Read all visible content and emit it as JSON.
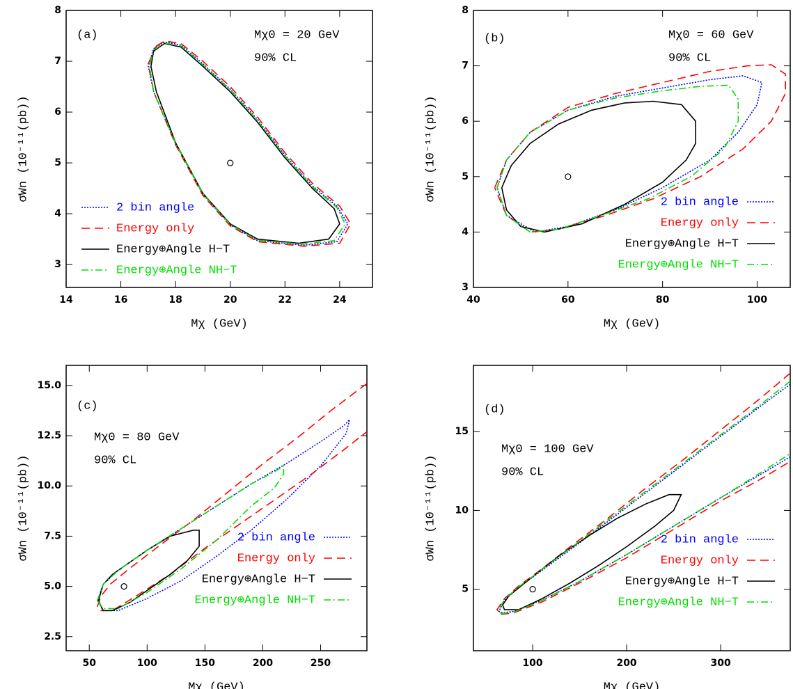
{
  "chart_data": [
    {
      "type": "line",
      "label": "(a)",
      "annotations": [
        "Mχ0 = 20 GeV",
        "90% CL"
      ],
      "x_label": "Mχ (GeV)",
      "y_label": "σWn (10⁻¹¹(pb))",
      "xlim": [
        14,
        25.2
      ],
      "ylim": [
        2.55,
        8
      ],
      "xticks": [
        14,
        16,
        18,
        20,
        22,
        24
      ],
      "yticks": [
        3,
        4,
        5,
        6,
        7,
        8
      ],
      "legend": "lower left",
      "center": {
        "x": 20,
        "y": 5
      },
      "series": [
        {
          "name": "2 bin angle",
          "color": "#0000ff",
          "dash": "2,2",
          "x": [
            17.2,
            17.6,
            18.2,
            19,
            20,
            21,
            22,
            23,
            23.9,
            24.3,
            23.9,
            22.7,
            21,
            20,
            19,
            18,
            17.2,
            17.0,
            17.2
          ],
          "values": [
            7.25,
            7.38,
            7.32,
            6.95,
            6.45,
            5.85,
            5.15,
            4.55,
            4.15,
            3.8,
            3.45,
            3.38,
            3.47,
            3.78,
            4.38,
            5.38,
            6.4,
            6.9,
            7.25
          ]
        },
        {
          "name": "Energy only",
          "color": "#ff0000",
          "dash": "12,7",
          "x": [
            17.3,
            17.6,
            18.2,
            19,
            20,
            21,
            22,
            23,
            24,
            24.4,
            24.0,
            22.7,
            21,
            20,
            19,
            18,
            17.2,
            17.0,
            17.3
          ],
          "values": [
            7.3,
            7.4,
            7.35,
            7.0,
            6.5,
            5.9,
            5.2,
            4.6,
            4.15,
            3.8,
            3.42,
            3.36,
            3.45,
            3.76,
            4.36,
            5.36,
            6.4,
            6.95,
            7.3
          ]
        },
        {
          "name": "Energy⊕Angle H−T",
          "color": "#000000",
          "dash": "none",
          "x": [
            17.2,
            17.6,
            18.2,
            19,
            20,
            21,
            22,
            23,
            23.8,
            24,
            23.6,
            22.5,
            21,
            20,
            19,
            18,
            17.3,
            17.1,
            17.2
          ],
          "values": [
            7.2,
            7.35,
            7.28,
            6.9,
            6.4,
            5.8,
            5.1,
            4.5,
            4.1,
            3.8,
            3.5,
            3.42,
            3.5,
            3.8,
            4.4,
            5.4,
            6.4,
            6.9,
            7.2
          ]
        },
        {
          "name": "Energy⊕Angle NH−T",
          "color": "#00dd00",
          "dash": "10,4,2,4",
          "x": [
            17.2,
            17.6,
            18.2,
            19,
            20,
            21,
            22,
            23,
            23.9,
            24.2,
            23.8,
            22.6,
            21,
            20,
            19,
            18,
            17.2,
            17.05,
            17.2
          ],
          "values": [
            7.22,
            7.36,
            7.3,
            6.93,
            6.43,
            5.83,
            5.13,
            4.53,
            4.12,
            3.8,
            3.47,
            3.4,
            3.48,
            3.79,
            4.39,
            5.39,
            6.4,
            6.9,
            7.22
          ]
        }
      ]
    },
    {
      "type": "line",
      "label": "(b)",
      "annotations": [
        "Mχ0 = 60 GeV",
        "90% CL"
      ],
      "x_label": "Mχ (GeV)",
      "y_label": "σWn (10⁻¹¹(pb))",
      "xlim": [
        40,
        107
      ],
      "ylim": [
        3,
        8
      ],
      "xticks": [
        40,
        60,
        80,
        100
      ],
      "yticks": [
        3,
        4,
        5,
        6,
        7,
        8
      ],
      "legend": "lower right",
      "center": {
        "x": 60,
        "y": 5
      },
      "series": [
        {
          "name": "2 bin angle",
          "color": "#0000ff",
          "dash": "2,2",
          "x": [
            45,
            47,
            52,
            60,
            70,
            80,
            90,
            97,
            101,
            100,
            96,
            90,
            80,
            70,
            60,
            53,
            47,
            45
          ],
          "values": [
            4.8,
            5.3,
            5.8,
            6.2,
            6.45,
            6.6,
            6.75,
            6.82,
            6.7,
            6.3,
            5.8,
            5.3,
            4.8,
            4.4,
            4.1,
            4.0,
            4.3,
            4.8
          ]
        },
        {
          "name": "Energy only",
          "color": "#ff0000",
          "dash": "12,7",
          "x": [
            44.5,
            47,
            52,
            60,
            70,
            80,
            90,
            98,
            103,
            106,
            106,
            103,
            97,
            88,
            78,
            68,
            58,
            52,
            47,
            44.5
          ],
          "values": [
            4.8,
            5.3,
            5.8,
            6.25,
            6.5,
            6.7,
            6.9,
            7.0,
            7.02,
            6.85,
            6.5,
            6.0,
            5.5,
            5.0,
            4.6,
            4.3,
            4.05,
            4.0,
            4.3,
            4.8
          ]
        },
        {
          "name": "Energy⊕Angle H−T",
          "color": "#000000",
          "dash": "none",
          "x": [
            46,
            48,
            52,
            58,
            65,
            72,
            78,
            84,
            87,
            87,
            85,
            80,
            72,
            63,
            55,
            50,
            47,
            46
          ],
          "values": [
            4.8,
            5.2,
            5.6,
            5.95,
            6.2,
            6.33,
            6.36,
            6.3,
            6.0,
            5.6,
            5.3,
            4.9,
            4.5,
            4.15,
            4.0,
            4.1,
            4.4,
            4.8
          ]
        },
        {
          "name": "Energy⊕Angle NH−T",
          "color": "#00dd00",
          "dash": "10,4,2,4",
          "x": [
            45,
            47,
            52,
            60,
            70,
            80,
            88,
            94,
            96,
            96,
            93,
            86,
            77,
            67,
            58,
            52,
            47,
            45
          ],
          "values": [
            4.8,
            5.3,
            5.8,
            6.2,
            6.42,
            6.55,
            6.63,
            6.65,
            6.4,
            6.0,
            5.5,
            5.0,
            4.6,
            4.3,
            4.05,
            4.0,
            4.3,
            4.8
          ]
        }
      ]
    },
    {
      "type": "line",
      "label": "(c)",
      "annotations": [
        "Mχ0 = 80 GeV",
        "90% CL"
      ],
      "x_label": "Mχ (GeV)",
      "y_label": "σWn (10⁻¹¹(pb))",
      "xlim": [
        30,
        290
      ],
      "ylim": [
        1.8,
        16
      ],
      "xticks": [
        50,
        100,
        150,
        200,
        250
      ],
      "yticks": [
        2.5,
        {
          "value": 5,
          "label": "5.0"
        },
        7.5,
        {
          "value": 10,
          "label": "10.0"
        },
        12.5,
        {
          "value": 15,
          "label": "15.0"
        }
      ],
      "legend": "lower right",
      "center": {
        "x": 80,
        "y": 5
      },
      "series": [
        {
          "name": "2 bin angle",
          "color": "#0000ff",
          "dash": "2,2",
          "x": [
            57,
            62,
            75,
            100,
            130,
            160,
            190,
            220,
            250,
            270,
            275,
            272,
            250,
            220,
            190,
            160,
            130,
            100,
            75,
            62,
            57
          ],
          "values": [
            4.3,
            5.1,
            5.8,
            6.8,
            7.9,
            9.0,
            10.1,
            11.1,
            12.2,
            13.0,
            13.3,
            12.6,
            11.0,
            9.3,
            7.8,
            6.5,
            5.3,
            4.4,
            3.8,
            3.8,
            4.3
          ]
        },
        {
          "name": "Energy only",
          "color": "#ff0000",
          "dash": "12,7",
          "x": [
            290,
            260,
            230,
            200,
            170,
            140,
            110,
            85,
            68,
            60,
            57,
            60,
            70,
            90,
            120,
            150,
            180,
            210,
            240,
            270,
            290
          ],
          "values": [
            15.1,
            13.8,
            12.4,
            11.1,
            9.7,
            8.3,
            7.0,
            5.9,
            5.1,
            4.5,
            4.0,
            3.8,
            3.8,
            4.5,
            5.6,
            6.9,
            8.1,
            9.3,
            10.5,
            11.8,
            12.7
          ]
        },
        {
          "name": "Energy⊕Angle H−T",
          "color": "#000000",
          "dash": "none",
          "x": [
            58,
            62,
            70,
            85,
            100,
            120,
            140,
            145,
            145,
            135,
            120,
            100,
            85,
            70,
            62,
            58
          ],
          "values": [
            4.3,
            5.1,
            5.6,
            6.2,
            6.8,
            7.5,
            7.8,
            7.8,
            7.0,
            6.3,
            5.6,
            4.8,
            4.2,
            3.8,
            3.8,
            4.3
          ]
        },
        {
          "name": "Energy⊕Angle NH−T",
          "color": "#00dd00",
          "dash": "10,4,2,4",
          "x": [
            57,
            62,
            75,
            100,
            130,
            160,
            190,
            210,
            218,
            218,
            210,
            190,
            160,
            130,
            100,
            75,
            62,
            57
          ],
          "values": [
            4.3,
            5.1,
            5.8,
            6.8,
            7.9,
            9.0,
            10.1,
            10.7,
            11.0,
            10.6,
            9.9,
            9.0,
            7.3,
            5.9,
            4.7,
            3.9,
            3.9,
            4.3
          ]
        }
      ]
    },
    {
      "type": "line",
      "label": "(d)",
      "annotations": [
        "Mχ0 = 100 GeV",
        "90% CL"
      ],
      "x_label": "Mχ (GeV)",
      "y_label": "σWn (10⁻¹¹(pb))",
      "xlim": [
        37,
        374
      ],
      "ylim": [
        1.1,
        19.2
      ],
      "xticks": [
        100,
        200,
        300
      ],
      "yticks": [
        5,
        10,
        15
      ],
      "legend": "lower right",
      "center": {
        "x": 100,
        "y": 5
      },
      "series": [
        {
          "name": "2 bin angle",
          "color": "#0000ff",
          "dash": "2,2",
          "x": [
            374,
            340,
            300,
            260,
            220,
            180,
            140,
            110,
            85,
            70,
            64,
            68,
            80,
            110,
            150,
            200,
            250,
            300,
            340,
            374
          ],
          "values": [
            18.0,
            16.5,
            14.7,
            12.9,
            11.1,
            9.3,
            7.5,
            6.2,
            5.1,
            4.3,
            3.6,
            3.5,
            3.6,
            4.3,
            5.5,
            7.2,
            9.0,
            10.8,
            12.2,
            13.4
          ]
        },
        {
          "name": "Energy only",
          "color": "#ff0000",
          "dash": "12,7",
          "x": [
            374,
            340,
            300,
            260,
            220,
            180,
            140,
            110,
            85,
            70,
            62,
            66,
            80,
            110,
            150,
            200,
            250,
            300,
            340,
            374
          ],
          "values": [
            18.7,
            17.0,
            15.1,
            13.2,
            11.4,
            9.5,
            7.7,
            6.3,
            5.2,
            4.4,
            3.7,
            3.4,
            3.5,
            4.2,
            5.4,
            7.0,
            8.8,
            10.6,
            11.9,
            13.1
          ]
        },
        {
          "name": "Energy⊕Angle H−T",
          "color": "#000000",
          "dash": "none",
          "x": [
            68,
            75,
            100,
            130,
            160,
            190,
            220,
            245,
            258,
            250,
            230,
            200,
            170,
            140,
            110,
            85,
            70,
            68
          ],
          "values": [
            4.0,
            4.6,
            5.8,
            7.2,
            8.4,
            9.5,
            10.4,
            11.0,
            11.0,
            10.0,
            9.0,
            7.7,
            6.5,
            5.4,
            4.4,
            3.7,
            3.7,
            4.0
          ]
        },
        {
          "name": "Energy⊕Angle NH−T",
          "color": "#00dd00",
          "dash": "10,4,2,4",
          "x": [
            374,
            340,
            300,
            260,
            220,
            180,
            140,
            110,
            85,
            70,
            63,
            67,
            80,
            110,
            150,
            200,
            250,
            300,
            340,
            374
          ],
          "values": [
            18.2,
            16.6,
            14.8,
            13.0,
            11.2,
            9.4,
            7.6,
            6.25,
            5.15,
            4.35,
            3.6,
            3.45,
            3.55,
            4.3,
            5.5,
            7.2,
            9.0,
            10.8,
            12.3,
            13.6
          ]
        }
      ]
    }
  ]
}
